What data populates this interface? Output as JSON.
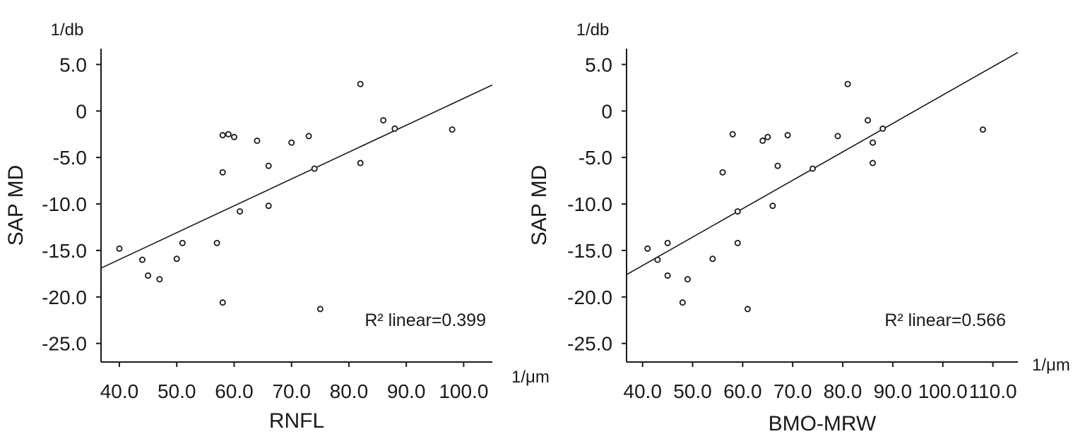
{
  "chart_data": [
    {
      "type": "scatter",
      "xlabel": "RNFL",
      "ylabel": "SAP MD",
      "x_unit": "1/μm",
      "y_unit": "1/db",
      "xlim": [
        36.8,
        105
      ],
      "ylim": [
        -27.0,
        6.7
      ],
      "x_ticks": [
        "40.0",
        "50.0",
        "60.0",
        "70.0",
        "80.0",
        "90.0",
        "100.0"
      ],
      "y_ticks": [
        "5.0",
        "0",
        "-5.0",
        "-10.0",
        "-15.0",
        "-20.0",
        "-25.0"
      ],
      "annotation": "R² linear=0.399",
      "fit_line": {
        "x": [
          36.8,
          105
        ],
        "y": [
          -16.9,
          2.8
        ]
      },
      "points": [
        {
          "x": 40,
          "y": -14.8
        },
        {
          "x": 44,
          "y": -16.0
        },
        {
          "x": 45,
          "y": -17.7
        },
        {
          "x": 47,
          "y": -18.1
        },
        {
          "x": 50,
          "y": -15.9
        },
        {
          "x": 51,
          "y": -14.2
        },
        {
          "x": 57,
          "y": -14.2
        },
        {
          "x": 58,
          "y": -2.6
        },
        {
          "x": 58,
          "y": -6.6
        },
        {
          "x": 58,
          "y": -20.6
        },
        {
          "x": 59,
          "y": -2.5
        },
        {
          "x": 60,
          "y": -2.8
        },
        {
          "x": 61,
          "y": -10.8
        },
        {
          "x": 64,
          "y": -3.2
        },
        {
          "x": 66,
          "y": -5.9
        },
        {
          "x": 66,
          "y": -10.2
        },
        {
          "x": 70,
          "y": -3.4
        },
        {
          "x": 73,
          "y": -2.7
        },
        {
          "x": 74,
          "y": -6.2
        },
        {
          "x": 75,
          "y": -21.3
        },
        {
          "x": 82,
          "y": 2.9
        },
        {
          "x": 82,
          "y": -5.6
        },
        {
          "x": 86,
          "y": -1.0
        },
        {
          "x": 88,
          "y": -1.9
        },
        {
          "x": 98,
          "y": -2.0
        }
      ]
    },
    {
      "type": "scatter",
      "xlabel": "BMO-MRW",
      "ylabel": "SAP MD",
      "x_unit": "1/μm",
      "y_unit": "1/db",
      "xlim": [
        36.8,
        115
      ],
      "ylim": [
        -27.0,
        6.7
      ],
      "x_ticks": [
        "40.0",
        "50.0",
        "60.0",
        "70.0",
        "80.0",
        "90.0",
        "100.0",
        "110.0"
      ],
      "y_ticks": [
        "5.0",
        "0",
        "-5.0",
        "-10.0",
        "-15.0",
        "-20.0",
        "-25.0"
      ],
      "annotation": "R² linear=0.566",
      "fit_line": {
        "x": [
          36.8,
          115
        ],
        "y": [
          -17.6,
          6.3
        ]
      },
      "points": [
        {
          "x": 41,
          "y": -14.8
        },
        {
          "x": 43,
          "y": -16.0
        },
        {
          "x": 45,
          "y": -14.2
        },
        {
          "x": 45,
          "y": -17.7
        },
        {
          "x": 48,
          "y": -20.6
        },
        {
          "x": 49,
          "y": -18.1
        },
        {
          "x": 54,
          "y": -15.9
        },
        {
          "x": 56,
          "y": -6.6
        },
        {
          "x": 58,
          "y": -2.5
        },
        {
          "x": 59,
          "y": -10.8
        },
        {
          "x": 59,
          "y": -14.2
        },
        {
          "x": 61,
          "y": -21.3
        },
        {
          "x": 64,
          "y": -3.2
        },
        {
          "x": 65,
          "y": -2.8
        },
        {
          "x": 66,
          "y": -10.2
        },
        {
          "x": 67,
          "y": -5.9
        },
        {
          "x": 69,
          "y": -2.6
        },
        {
          "x": 74,
          "y": -6.2
        },
        {
          "x": 79,
          "y": -2.7
        },
        {
          "x": 81,
          "y": 2.9
        },
        {
          "x": 85,
          "y": -1.0
        },
        {
          "x": 86,
          "y": -3.4
        },
        {
          "x": 86,
          "y": -5.6
        },
        {
          "x": 88,
          "y": -1.9
        },
        {
          "x": 108,
          "y": -2.0
        }
      ]
    }
  ]
}
